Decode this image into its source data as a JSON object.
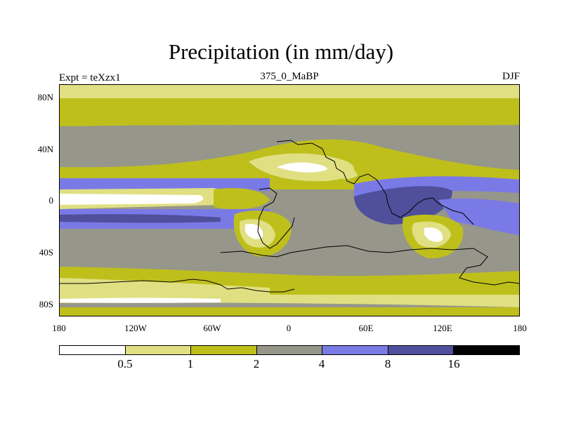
{
  "title": "Precipitation (in mm/day)",
  "left_label": "Expt = teXzx1",
  "center_label": "375_0_MaBP",
  "right_label": "DJF",
  "lat_ticks": [
    "80N",
    "40N",
    "0",
    "40S",
    "80S"
  ],
  "lon_ticks": [
    "180",
    "120W",
    "60W",
    "0",
    "60E",
    "120E",
    "180"
  ],
  "colorbar": {
    "colors": [
      "#ffffff",
      "#e0e083",
      "#bfbf1c",
      "#96968a",
      "#7a7ae6",
      "#4f4f9c",
      "#000000"
    ],
    "labels": [
      "0.5",
      "1",
      "2",
      "4",
      "8",
      "16"
    ]
  },
  "field_colors": {
    "white": "#ffffff",
    "light": "#e0e083",
    "olive": "#bfbf1c",
    "gray": "#96968a",
    "blue": "#7a7ae6",
    "navy": "#4f4f9c"
  }
}
